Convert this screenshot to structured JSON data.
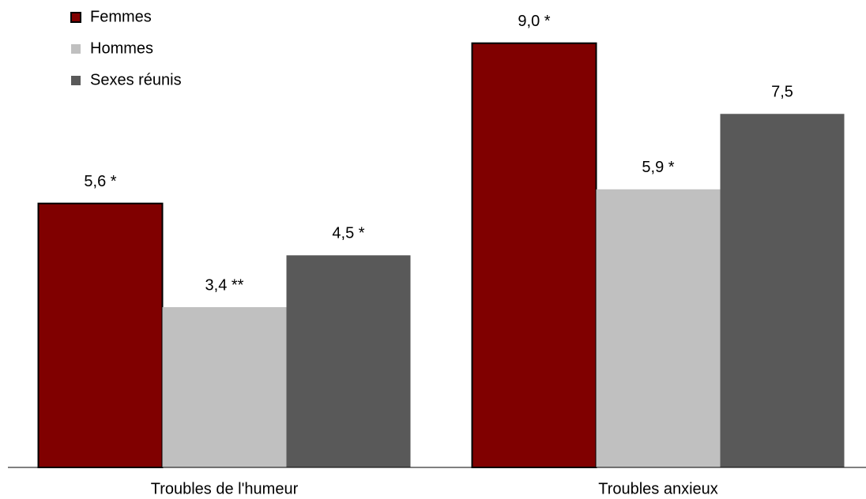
{
  "chart_data": {
    "type": "bar",
    "categories": [
      "Troubles de l'humeur",
      "Troubles anxieux"
    ],
    "series": [
      {
        "name": "Femmes",
        "color": "#800000",
        "values": [
          5.6,
          9.0
        ],
        "value_labels": [
          "5,6 *",
          "9,0 *"
        ]
      },
      {
        "name": "Hommes",
        "color": "#c0c0c0",
        "values": [
          3.4,
          5.9
        ],
        "value_labels": [
          "3,4 **",
          "5,9 *"
        ]
      },
      {
        "name": "Sexes réunis",
        "color": "#595959",
        "values": [
          4.5,
          7.5
        ],
        "value_labels": [
          "4,5 *",
          "7,5"
        ]
      }
    ],
    "ylim": [
      0,
      10
    ],
    "legend": "upper left"
  }
}
